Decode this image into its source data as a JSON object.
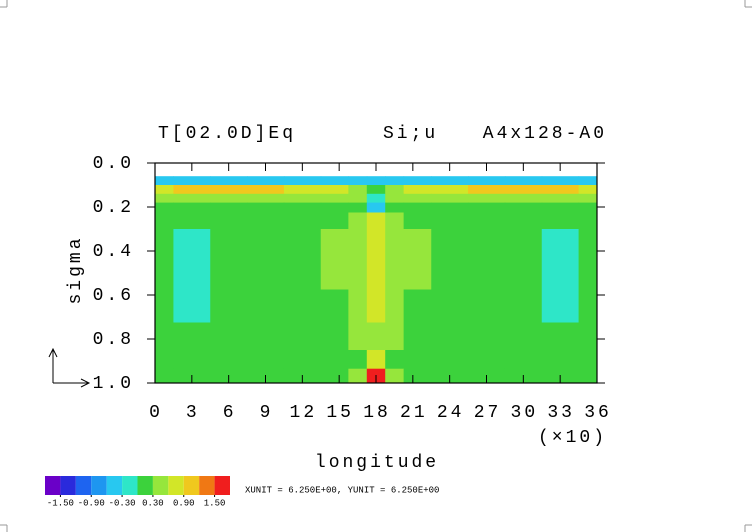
{
  "chart_data": {
    "type": "heatmap",
    "title_left": "T[02.0D]Eq",
    "title_mid": "Si;u",
    "title_right": "A4x128-A0",
    "xlabel": "longitude",
    "x_unit_label": "(×10)",
    "ylabel": "sigma",
    "note": "XUNIT = 6.250E+00, YUNIT = 6.250E+00",
    "xlim": [
      0,
      36
    ],
    "xticks": [
      0,
      3,
      6,
      9,
      12,
      15,
      18,
      21,
      24,
      27,
      30,
      33,
      36
    ],
    "ylim": [
      0,
      1
    ],
    "y_inverted": true,
    "yticks": [
      {
        "value": 0,
        "label": "0.0"
      },
      0.2,
      0.4,
      0.6,
      0.8,
      {
        "value": 1,
        "label": "1.0"
      }
    ],
    "field": {
      "x": [
        0,
        3,
        6,
        9,
        12,
        15,
        16.5,
        18,
        19.5,
        21,
        24,
        27,
        30,
        33,
        36
      ],
      "y": [
        0.08,
        0.12,
        0.16,
        0.2,
        0.25,
        0.35,
        0.5,
        0.65,
        0.8,
        0.9,
        0.97
      ],
      "values": [
        [
          -0.5,
          -0.5,
          -0.5,
          -0.5,
          -0.5,
          -0.5,
          -0.5,
          -0.4,
          -0.5,
          -0.5,
          -0.5,
          -0.5,
          -0.5,
          -0.5,
          -0.5
        ],
        [
          0.7,
          0.9,
          1.0,
          1.0,
          0.8,
          0.7,
          0.5,
          0.2,
          0.5,
          0.7,
          0.8,
          0.9,
          1.0,
          1.0,
          0.8
        ],
        [
          0.4,
          0.5,
          0.5,
          0.5,
          0.4,
          0.4,
          0.3,
          -0.2,
          0.3,
          0.4,
          0.4,
          0.5,
          0.5,
          0.5,
          0.4
        ],
        [
          0.2,
          0.2,
          0.2,
          0.2,
          0.2,
          0.2,
          0.1,
          -0.5,
          0.1,
          0.2,
          0.2,
          0.2,
          0.2,
          0.2,
          0.2
        ],
        [
          0.1,
          0.1,
          0.2,
          0.1,
          0.1,
          0.2,
          0.3,
          0.6,
          0.3,
          0.2,
          0.1,
          0.1,
          0.2,
          0.1,
          0.1
        ],
        [
          0.1,
          -0.1,
          0.1,
          0.1,
          0.2,
          0.3,
          0.4,
          0.8,
          0.4,
          0.3,
          0.2,
          0.1,
          0.1,
          -0.1,
          0.1
        ],
        [
          0.1,
          -0.1,
          0.1,
          0.2,
          0.2,
          0.3,
          0.4,
          0.7,
          0.4,
          0.3,
          0.2,
          0.1,
          0.1,
          -0.1,
          0.1
        ],
        [
          0.1,
          -0.1,
          0.1,
          0.1,
          0.1,
          0.2,
          0.3,
          0.6,
          0.3,
          0.2,
          0.1,
          0.1,
          0.1,
          -0.1,
          0.1
        ],
        [
          0.1,
          0.1,
          0.1,
          0.1,
          0.1,
          0.2,
          0.3,
          0.5,
          0.3,
          0.2,
          0.1,
          0.1,
          0.1,
          0.1,
          0.1
        ],
        [
          0.1,
          0.1,
          0.1,
          0.1,
          0.1,
          0.1,
          0.2,
          0.7,
          0.2,
          0.1,
          0.1,
          0.1,
          0.1,
          0.1,
          0.1
        ],
        [
          0.1,
          0.1,
          0.1,
          0.1,
          0.1,
          0.1,
          0.4,
          1.6,
          0.4,
          0.1,
          0.1,
          0.1,
          0.1,
          0.1,
          0.1
        ]
      ]
    },
    "colorbar": {
      "levels": [
        -1.8,
        -1.5,
        -1.2,
        -0.9,
        -0.6,
        -0.3,
        0,
        0.3,
        0.6,
        0.9,
        1.2,
        1.5,
        1.8
      ],
      "colors": [
        "#6a00c8",
        "#2a2adc",
        "#1e64f0",
        "#1e96f0",
        "#28c8f0",
        "#2ee6c8",
        "#3cd23c",
        "#96e63c",
        "#d2e628",
        "#f0c81e",
        "#f07814",
        "#f01e1e"
      ],
      "ticks": [
        {
          "value": -1.5,
          "label": "-1.50"
        },
        {
          "value": -0.9,
          "label": "-0.90"
        },
        {
          "value": -0.3,
          "label": "-0.30"
        },
        {
          "value": 0.3,
          "label": "0.30"
        },
        {
          "value": 0.9,
          "label": "0.90"
        },
        {
          "value": 1.5,
          "label": "1.50"
        }
      ]
    }
  }
}
